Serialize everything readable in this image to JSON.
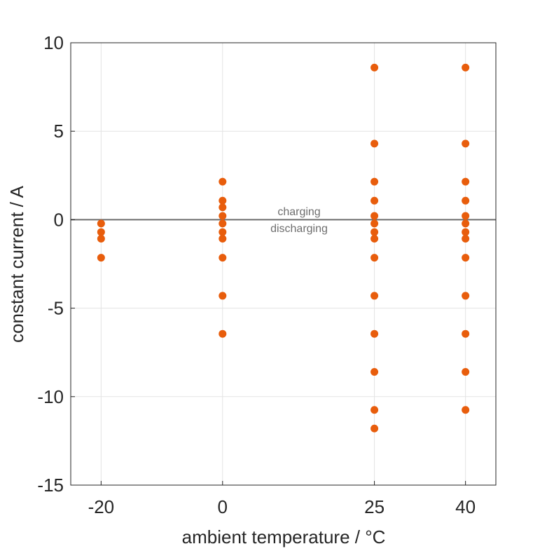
{
  "chart_data": {
    "type": "scatter",
    "title": "",
    "xlabel": "ambient temperature / °C",
    "ylabel": "constant current / A",
    "xlim": [
      -25,
      45
    ],
    "ylim": [
      -15,
      10
    ],
    "xticks": [
      -20,
      0,
      25,
      40
    ],
    "yticks": [
      10,
      5,
      0,
      -5,
      -10,
      -15
    ],
    "grid": true,
    "marker_color": "#E85D0C",
    "zero_line_color": "#6E6E6E",
    "annotations": [
      {
        "text": "charging"
      },
      {
        "text": "discharging"
      }
    ],
    "series": [
      {
        "x": -20,
        "y": [
          -0.215,
          -0.7,
          -1.075,
          -2.15
        ]
      },
      {
        "x": 0,
        "y": [
          2.15,
          1.075,
          0.7,
          0.215,
          -0.215,
          -0.7,
          -1.075,
          -2.15,
          -4.3,
          -6.45
        ]
      },
      {
        "x": 25,
        "y": [
          8.6,
          4.3,
          2.15,
          1.075,
          0.215,
          -0.215,
          -0.7,
          -1.075,
          -2.15,
          -4.3,
          -6.45,
          -8.6,
          -10.75,
          -11.8
        ]
      },
      {
        "x": 40,
        "y": [
          8.6,
          4.3,
          2.15,
          1.075,
          0.215,
          -0.215,
          -0.7,
          -1.075,
          -2.15,
          -4.3,
          -6.45,
          -8.6,
          -10.75
        ]
      }
    ]
  }
}
